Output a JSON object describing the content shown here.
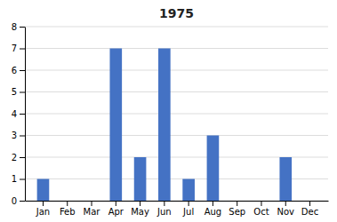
{
  "chart_data": {
    "type": "bar",
    "title": "1975",
    "categories": [
      "Jan",
      "Feb",
      "Mar",
      "Apr",
      "May",
      "Jun",
      "Jul",
      "Aug",
      "Sep",
      "Oct",
      "Nov",
      "Dec"
    ],
    "values": [
      1,
      0,
      0,
      7,
      2,
      7,
      1,
      3,
      0,
      0,
      2,
      0
    ],
    "color": "#4472C4",
    "ylim": [
      0,
      8
    ],
    "yticks": [
      0,
      1,
      2,
      3,
      4,
      5,
      6,
      7,
      8
    ],
    "grid": true
  }
}
